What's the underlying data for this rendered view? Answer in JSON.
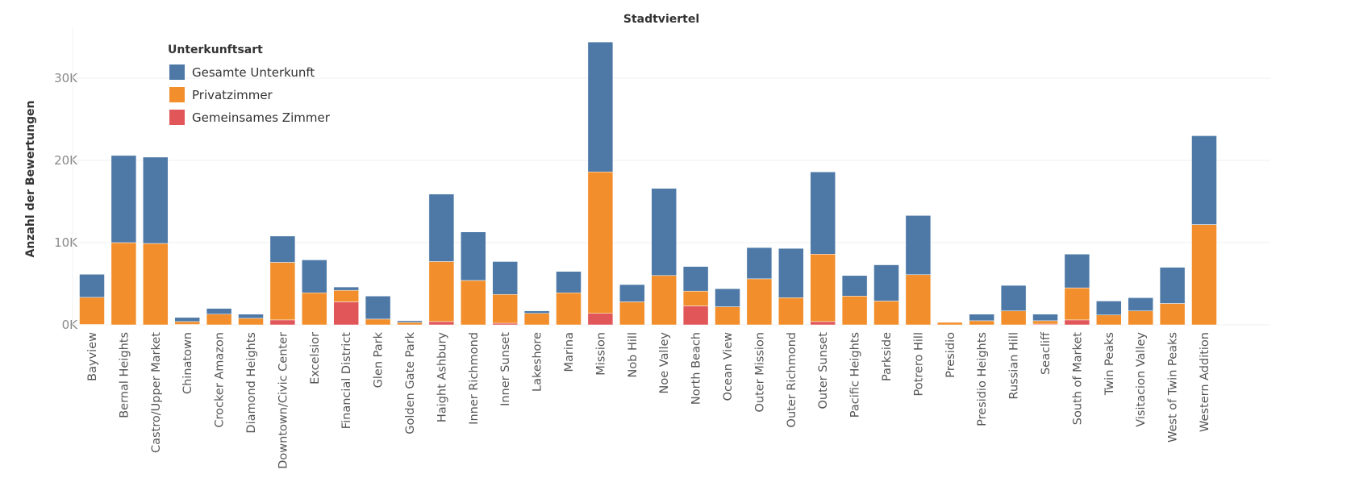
{
  "chart_data": {
    "type": "bar",
    "stacked": true,
    "title": "Stadtviertel",
    "xlabel": "",
    "ylabel": "Anzahl der Bewertungen",
    "ylim": [
      0,
      36000
    ],
    "yticks": [
      0,
      10000,
      20000,
      30000
    ],
    "ytick_labels": [
      "0K",
      "10K",
      "20K",
      "30K"
    ],
    "grid": true,
    "legend": {
      "title": "Unterkunftsart",
      "position": "top-left"
    },
    "categories": [
      "Bayview",
      "Bernal Heights",
      "Castro/Upper Market",
      "Chinatown",
      "Crocker Amazon",
      "Diamond Heights",
      "Downtown/Civic Center",
      "Excelsior",
      "Financial District",
      "Glen Park",
      "Golden Gate Park",
      "Haight Ashbury",
      "Inner Richmond",
      "Inner Sunset",
      "Lakeshore",
      "Marina",
      "Mission",
      "Nob Hill",
      "Noe Valley",
      "North Beach",
      "Ocean View",
      "Outer Mission",
      "Outer Richmond",
      "Outer Sunset",
      "Pacific Heights",
      "Parkside",
      "Potrero Hill",
      "Presidio",
      "Presidio Heights",
      "Russian Hill",
      "Seacliff",
      "South of Market",
      "Twin Peaks",
      "Visitacion Valley",
      "West of Twin Peaks",
      "Western Addition"
    ],
    "series": [
      {
        "name": "Gemeinsames Zimmer",
        "color": "#e15759",
        "values": [
          50,
          0,
          0,
          50,
          0,
          0,
          600,
          0,
          2800,
          0,
          0,
          400,
          0,
          200,
          0,
          0,
          1400,
          0,
          0,
          2300,
          0,
          0,
          0,
          400,
          0,
          0,
          0,
          0,
          0,
          0,
          100,
          600,
          0,
          0,
          0,
          0
        ]
      },
      {
        "name": "Privatzimmer",
        "color": "#f28e2b",
        "values": [
          3300,
          10000,
          9900,
          350,
          1300,
          800,
          7000,
          3900,
          1400,
          700,
          300,
          7300,
          5400,
          3500,
          1400,
          3900,
          17200,
          2800,
          6000,
          1800,
          2200,
          5600,
          3300,
          8200,
          3500,
          2900,
          6100,
          300,
          500,
          1700,
          400,
          3900,
          1200,
          1700,
          2600,
          12200
        ]
      },
      {
        "name": "Gesamte Unterkunft",
        "color": "#4e79a7",
        "values": [
          2800,
          10600,
          10500,
          500,
          700,
          500,
          3200,
          4000,
          400,
          2800,
          200,
          8200,
          5900,
          4000,
          300,
          2600,
          15800,
          2100,
          10600,
          3000,
          2200,
          3800,
          6000,
          10000,
          2500,
          4400,
          7200,
          0,
          800,
          3100,
          800,
          4100,
          1700,
          1600,
          4400,
          10800
        ]
      }
    ]
  }
}
